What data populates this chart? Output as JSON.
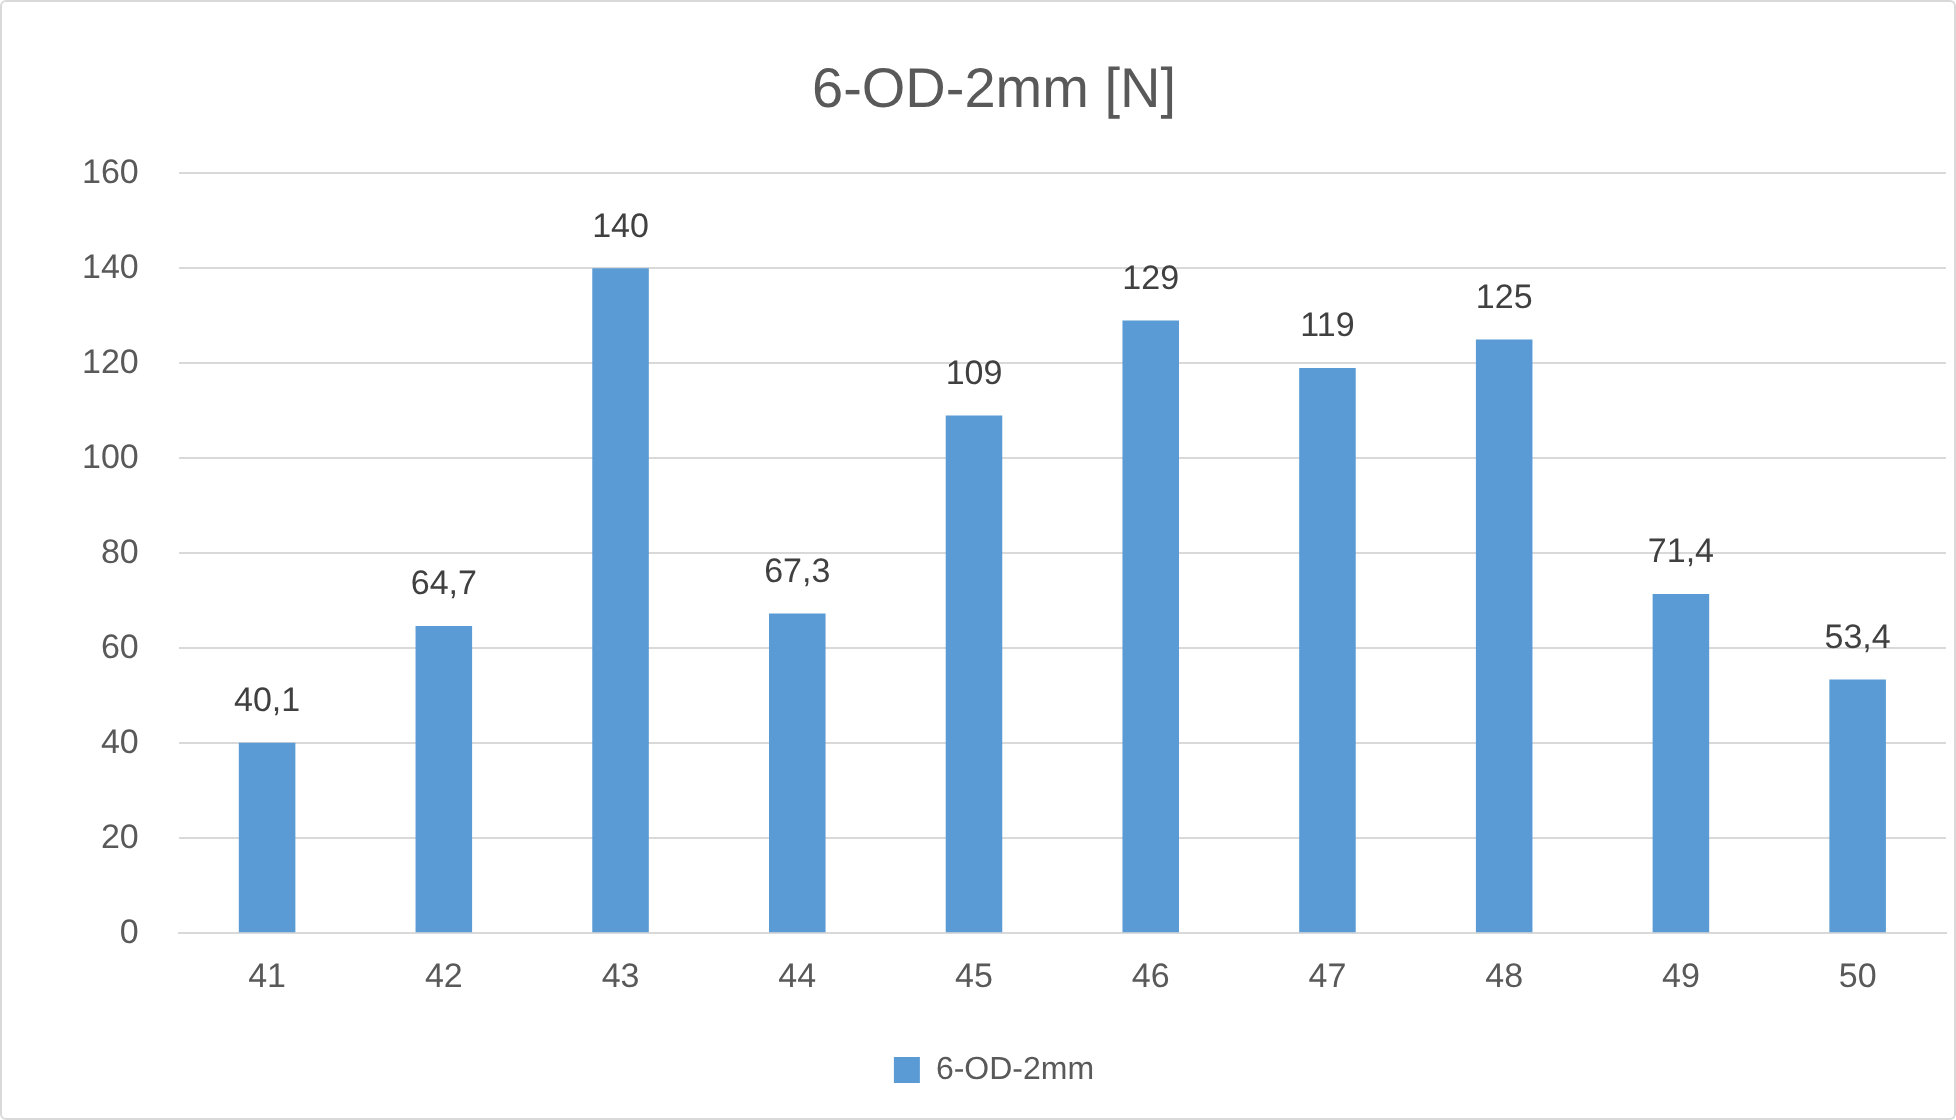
{
  "chart_data": {
    "type": "bar",
    "title": "6-OD-2mm [N]",
    "categories": [
      "41",
      "42",
      "43",
      "44",
      "45",
      "46",
      "47",
      "48",
      "49",
      "50"
    ],
    "series": [
      {
        "name": "6-OD-2mm",
        "color": "#5b9bd5",
        "values": [
          40.1,
          64.7,
          140,
          67.3,
          109,
          129,
          119,
          125,
          71.4,
          53.4
        ],
        "value_labels": [
          "40,1",
          "64,7",
          "140",
          "67,3",
          "109",
          "129",
          "119",
          "125",
          "71,4",
          "53,4"
        ]
      }
    ],
    "ylim": [
      0,
      160
    ],
    "yticks": [
      0,
      20,
      40,
      60,
      80,
      100,
      120,
      140,
      160
    ],
    "grid": "y",
    "legend": "bottom"
  }
}
